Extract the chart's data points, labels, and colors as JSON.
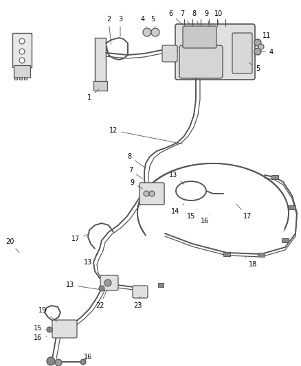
{
  "bg_color": "#ffffff",
  "line_color": "#555555",
  "figsize": [
    4.38,
    5.33
  ],
  "dpi": 100,
  "lw_tube": 1.4,
  "lw_tube2": 0.9,
  "lw_thin": 0.7
}
